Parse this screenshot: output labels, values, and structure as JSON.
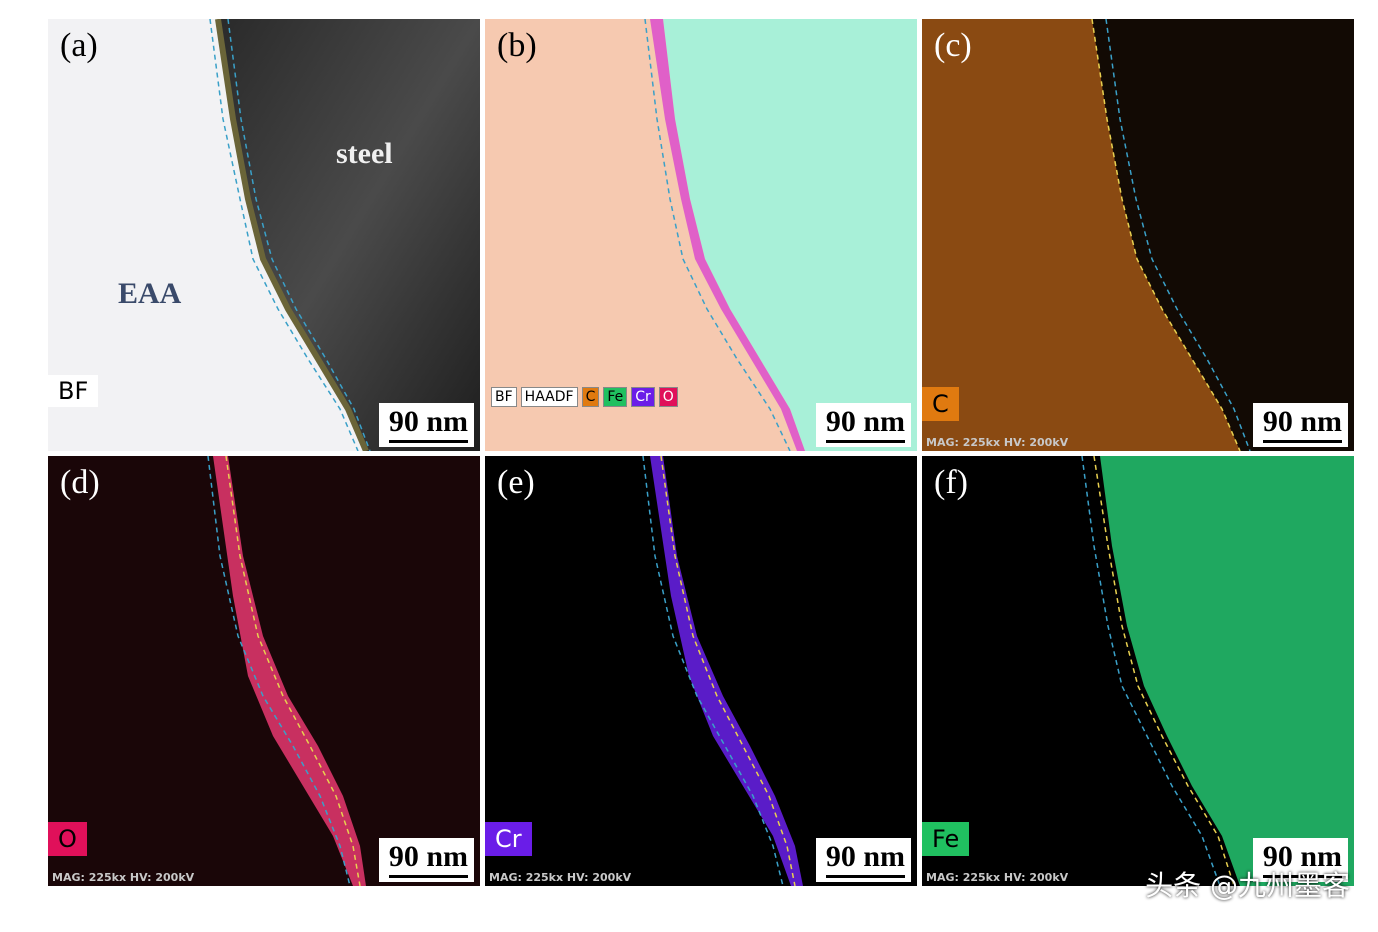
{
  "panels": [
    {
      "label": "(a)",
      "mode": "BF",
      "annotations": [
        "steel",
        "EAA"
      ],
      "scale": "90 nm"
    },
    {
      "label": "(b)",
      "legend": [
        "BF",
        "HAADF",
        "C",
        "Fe",
        "Cr",
        "O"
      ],
      "scale": "90 nm"
    },
    {
      "label": "(c)",
      "element": "C",
      "element_color": "#e07a10",
      "meta": "MAG: 225kx  HV: 200kV",
      "scale": "90 nm"
    },
    {
      "label": "(d)",
      "element": "O",
      "element_color": "#e0105a",
      "meta": "MAG: 225kx  HV: 200kV",
      "scale": "90 nm"
    },
    {
      "label": "(e)",
      "element": "Cr",
      "element_color": "#6a1de8",
      "meta": "MAG: 225kx  HV: 200kV",
      "scale": "90 nm"
    },
    {
      "label": "(f)",
      "element": "Fe",
      "element_color": "#20c060",
      "meta": "MAG: 225kx  HV: 200kV",
      "scale": "90 nm"
    }
  ],
  "watermark": "头条 @九州墨客"
}
